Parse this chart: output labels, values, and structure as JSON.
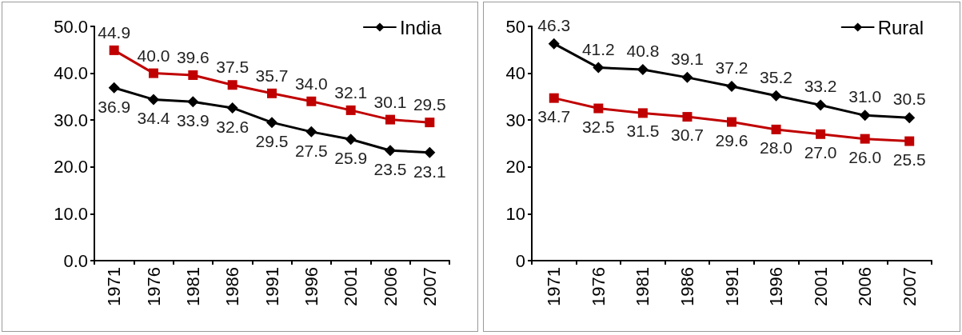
{
  "chart_data": [
    {
      "type": "line",
      "categories": [
        "1971",
        "1976",
        "1981",
        "1986",
        "1991",
        "1996",
        "2001",
        "2006",
        "2007"
      ],
      "series": [
        {
          "name": "India",
          "color": "#000000",
          "marker": "diamond",
          "values": [
            36.9,
            34.4,
            33.9,
            32.6,
            29.5,
            27.5,
            25.9,
            23.5,
            23.1
          ]
        },
        {
          "color": "#c00000",
          "marker": "square",
          "values": [
            44.9,
            40.0,
            39.6,
            37.5,
            35.7,
            34.0,
            32.1,
            30.1,
            29.5
          ],
          "value_labels": [
            "44.9",
            "40.0",
            "39.6",
            "37.5",
            "35.7",
            "34.0",
            "32.1",
            "30.1",
            "29.5"
          ]
        }
      ],
      "ylim": [
        0,
        50
      ],
      "yticks": [
        {
          "value": 0,
          "label": "0.0"
        },
        {
          "value": 10,
          "label": "10.0"
        },
        {
          "value": 20,
          "label": "20.0"
        },
        {
          "value": 30,
          "label": "30.0"
        },
        {
          "value": 40,
          "label": "40.0"
        },
        {
          "value": 50,
          "label": "50.0"
        }
      ],
      "grid": false,
      "legend": "top right",
      "data_labels": true
    },
    {
      "type": "line",
      "categories": [
        "1971",
        "1976",
        "1981",
        "1986",
        "1991",
        "1996",
        "2001",
        "2006",
        "2007"
      ],
      "series": [
        {
          "name": "Rural",
          "color": "#000000",
          "marker": "diamond",
          "values": [
            46.3,
            41.2,
            40.8,
            39.1,
            37.2,
            35.2,
            33.2,
            31.0,
            30.5
          ],
          "value_labels": [
            "46.3",
            "41.2",
            "40.8",
            "39.1",
            "37.2",
            "35.2",
            "33.2",
            "31.0",
            "30.5"
          ]
        },
        {
          "color": "#c00000",
          "marker": "square",
          "values": [
            34.7,
            32.5,
            31.5,
            30.7,
            29.6,
            28.0,
            27.0,
            26.0,
            25.5
          ],
          "value_labels": [
            "34.7",
            "32.5",
            "31.5",
            "30.7",
            "29.6",
            "28.0",
            "27.0",
            "26.0",
            "25.5"
          ]
        }
      ],
      "ylim": [
        0,
        50
      ],
      "yticks": [
        0,
        10,
        20,
        30,
        40,
        50
      ],
      "grid": false,
      "legend": "top right",
      "data_labels": true
    }
  ]
}
